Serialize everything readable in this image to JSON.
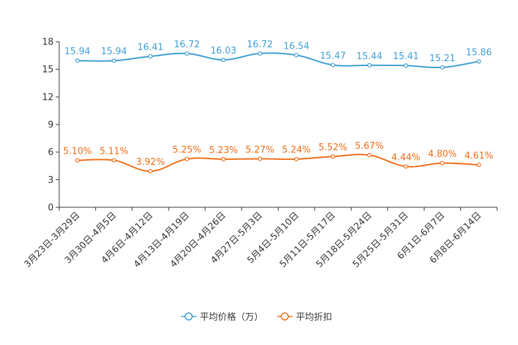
{
  "chart_data": {
    "type": "line",
    "categories": [
      "3月23日-3月29日",
      "3月30日-4月5日",
      "4月6日-4月12日",
      "4月13日-4月19日",
      "4月20日-4月26日",
      "4月27日-5月3日",
      "5月4日-5月10日",
      "5月11日-5月17日",
      "5月18日-5月24日",
      "5月25日-5月31日",
      "6月1日-6月7日",
      "6月8日-6月14日"
    ],
    "series": [
      {
        "name": "平均价格（万）",
        "color": "#3d9ed3",
        "values": [
          15.94,
          15.94,
          16.41,
          16.72,
          16.03,
          16.72,
          16.54,
          15.47,
          15.44,
          15.41,
          15.21,
          15.86
        ],
        "labels": [
          "15.94",
          "15.94",
          "16.41",
          "16.72",
          "16.03",
          "16.72",
          "16.54",
          "15.47",
          "15.44",
          "15.41",
          "15.21",
          "15.86"
        ]
      },
      {
        "name": "平均折扣",
        "color": "#ee6c13",
        "values": [
          5.1,
          5.11,
          3.92,
          5.25,
          5.23,
          5.27,
          5.24,
          5.52,
          5.67,
          4.44,
          4.8,
          4.61
        ],
        "labels": [
          "5.10%",
          "5.11%",
          "3.92%",
          "5.25%",
          "5.23%",
          "5.27%",
          "5.24%",
          "5.52%",
          "5.67%",
          "4.44%",
          "4.80%",
          "4.61%"
        ]
      }
    ],
    "yticks": [
      0,
      3,
      6,
      9,
      12,
      15,
      18
    ],
    "ylim": [
      0,
      18
    ],
    "grid": false,
    "legend": "bottom-center",
    "title": "",
    "xlabel": "",
    "ylabel": ""
  }
}
